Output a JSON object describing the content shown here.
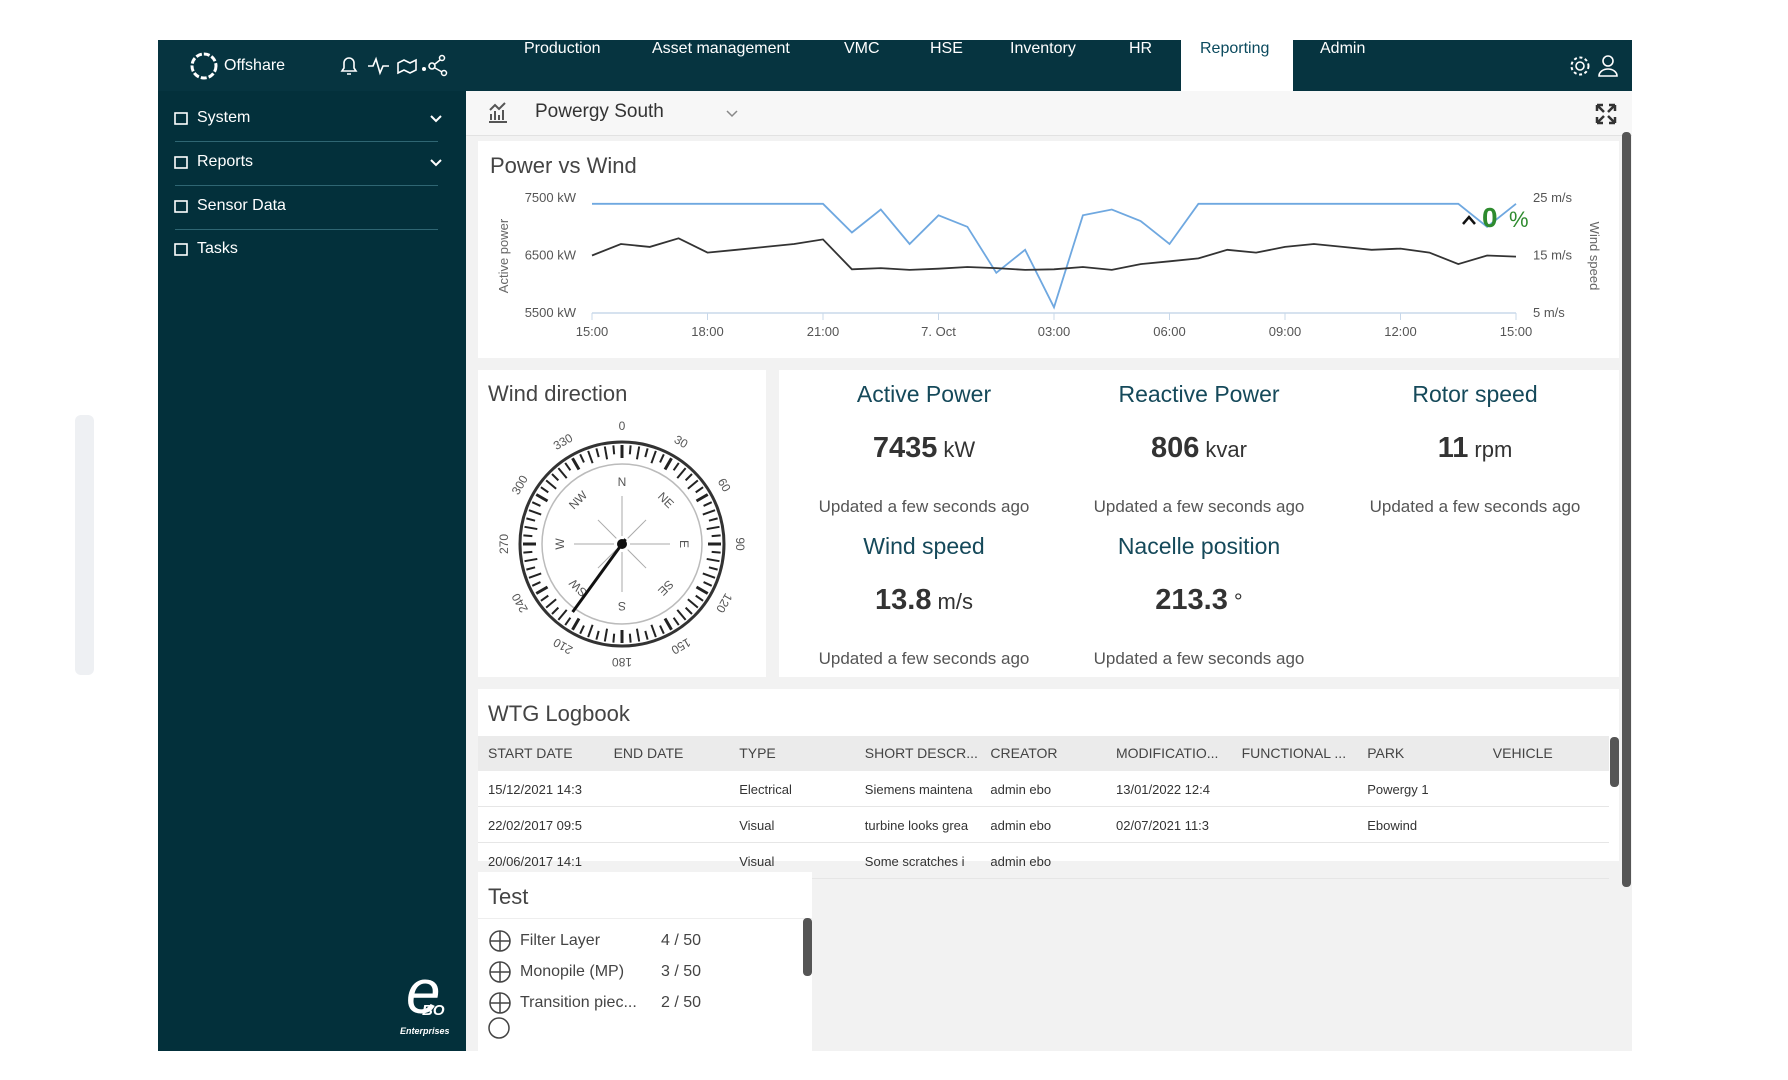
{
  "nav": {
    "brand": "Offshare",
    "menu": [
      "Production",
      "Asset management",
      "VMC",
      "HSE",
      "Inventory",
      "HR",
      "Reporting",
      "Admin"
    ],
    "active_menu": 6
  },
  "sidebar": {
    "items": [
      "System",
      "Reports",
      "Sensor Data",
      "Tasks"
    ],
    "logo": "Enterprises"
  },
  "header": {
    "title": "Powergy South"
  },
  "chart_data": {
    "type": "line",
    "title": "Power vs Wind",
    "ylabel": "Active power",
    "y2label": "Wind speed",
    "xlim": [
      0,
      24
    ],
    "xticks": [
      {
        "value": 0,
        "label": "15:00"
      },
      {
        "value": 3,
        "label": "18:00"
      },
      {
        "value": 6,
        "label": "21:00"
      },
      {
        "value": 9,
        "label": "7. Oct"
      },
      {
        "value": 12,
        "label": "03:00"
      },
      {
        "value": 15,
        "label": "06:00"
      },
      {
        "value": 18,
        "label": "09:00"
      },
      {
        "value": 21,
        "label": "12:00"
      },
      {
        "value": 24,
        "label": "15:00"
      }
    ],
    "ylim": [
      5500,
      7500
    ],
    "yticks": [
      {
        "value": 5500,
        "label": "5500 kW"
      },
      {
        "value": 6500,
        "label": "6500 kW"
      },
      {
        "value": 7500,
        "label": "7500 kW"
      }
    ],
    "y2lim": [
      5,
      25
    ],
    "y2ticks": [
      {
        "value": 5,
        "label": "5 m/s"
      },
      {
        "value": 15,
        "label": "15 m/s"
      },
      {
        "value": 25,
        "label": "25 m/s"
      }
    ],
    "grid": false,
    "x": [
      0,
      0.75,
      1.5,
      2.25,
      3,
      3.75,
      4.5,
      5.25,
      6,
      6.75,
      7.5,
      8.25,
      9,
      9.75,
      10.5,
      11.25,
      12,
      12.75,
      13.5,
      14.25,
      15,
      15.75,
      16.5,
      17.25,
      18,
      18.75,
      19.5,
      20.25,
      21,
      21.75,
      22.5,
      23.25,
      24
    ],
    "series": [
      {
        "name": "Active power",
        "color": "#333333",
        "values": [
          6500,
          6700,
          6650,
          6800,
          6550,
          6600,
          6650,
          6700,
          6780,
          6260,
          6280,
          6250,
          6270,
          6300,
          6280,
          6250,
          6260,
          6300,
          6250,
          6350,
          6400,
          6450,
          6600,
          6550,
          6650,
          6700,
          6650,
          6600,
          6620,
          6550,
          6350,
          6500,
          6480
        ]
      },
      {
        "name": "Wind speed",
        "color": "#6fa8e0",
        "axis": "y2",
        "values": [
          24,
          24,
          24,
          24,
          24,
          24,
          24,
          24,
          24,
          19,
          23,
          17,
          22,
          20,
          12,
          16,
          6,
          22,
          23,
          21,
          17,
          24,
          24,
          24,
          24,
          24,
          24,
          24,
          24,
          24,
          24,
          20,
          24
        ]
      }
    ],
    "gauge": {
      "value": 0,
      "unit": "%",
      "color": "#2e8b2e"
    }
  },
  "wind_direction": {
    "title": "Wind direction",
    "ticks": [
      0,
      30,
      60,
      90,
      120,
      150,
      180,
      210,
      240,
      270,
      300,
      330
    ],
    "points": [
      "N",
      "NE",
      "E",
      "SE",
      "S",
      "SW",
      "W",
      "NW"
    ],
    "needle": 216
  },
  "metrics": [
    {
      "title": "Active Power",
      "value": 7435,
      "unit": "kW",
      "updated": "Updated a few seconds ago"
    },
    {
      "title": "Reactive Power",
      "value": 806,
      "unit": "kvar",
      "updated": "Updated a few seconds ago"
    },
    {
      "title": "Rotor speed",
      "value": 11,
      "unit": "rpm",
      "updated": "Updated a few seconds ago"
    },
    {
      "title": "Wind speed",
      "value": 13.8,
      "unit": "m/s",
      "updated": "Updated a few seconds ago"
    },
    {
      "title": "Nacelle position",
      "value": 213.3,
      "unit": "°",
      "updated": "Updated a few seconds ago"
    }
  ],
  "logbook": {
    "title": "WTG Logbook",
    "columns": [
      "START DATE",
      "END DATE",
      "TYPE",
      "SHORT DESCR...",
      "CREATOR",
      "MODIFICATIO...",
      "FUNCTIONAL ...",
      "PARK",
      "VEHICLE"
    ],
    "rows": [
      [
        "15/12/2021 14:3",
        null,
        "Electrical",
        "Siemens maintena",
        "admin ebo",
        "13/01/2022 12:4",
        null,
        "Powergy 1",
        null
      ],
      [
        "22/02/2017 09:5",
        null,
        "Visual",
        "turbine looks grea",
        "admin ebo",
        "02/07/2021 11:3",
        null,
        "Ebowind",
        null
      ],
      [
        "20/06/2017 14:1",
        null,
        "Visual",
        "Some scratches i",
        "admin ebo",
        null,
        null,
        null,
        null
      ]
    ]
  },
  "test": {
    "title": "Test",
    "rows": [
      {
        "name": "Filter Layer",
        "count": "4 / 50"
      },
      {
        "name": "Monopile (MP)",
        "count": "3 / 50"
      },
      {
        "name": "Transition piec...",
        "count": "2 / 50"
      }
    ]
  }
}
